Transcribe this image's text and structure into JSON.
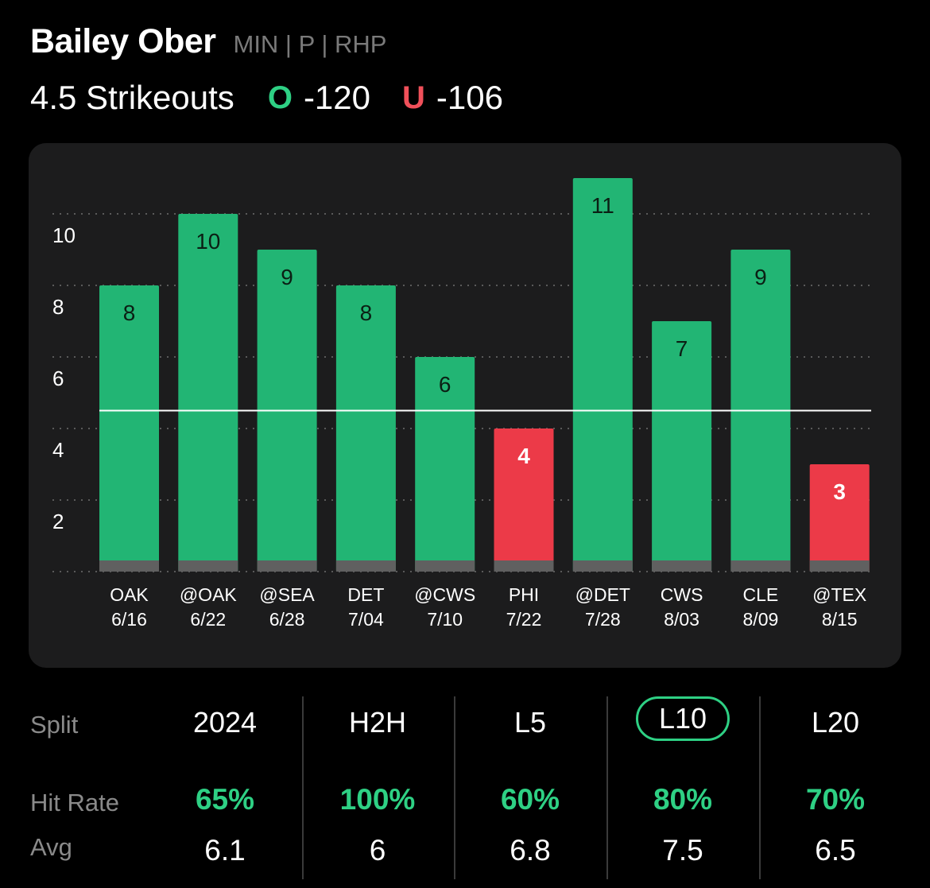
{
  "header": {
    "player_name": "Bailey Ober",
    "player_meta": "MIN | P | RHP",
    "prop_line": "4.5 Strikeouts",
    "over_letter": "O",
    "over_odds": "-120",
    "under_letter": "U",
    "under_odds": "-106"
  },
  "colors": {
    "over": "#2ed084",
    "under": "#f0505a",
    "bar_hit": "#22b574",
    "bar_miss": "#ec3a48",
    "bar_base": "#606060"
  },
  "chart_data": {
    "type": "bar",
    "line": 4.5,
    "ylim": [
      0,
      11.5
    ],
    "yticks": [
      2,
      4,
      6,
      8,
      10
    ],
    "grid": true,
    "categories": [
      {
        "opponent": "OAK",
        "date": "6/16"
      },
      {
        "opponent": "@OAK",
        "date": "6/22"
      },
      {
        "opponent": "@SEA",
        "date": "6/28"
      },
      {
        "opponent": "DET",
        "date": "7/04"
      },
      {
        "opponent": "@CWS",
        "date": "7/10"
      },
      {
        "opponent": "PHI",
        "date": "7/22"
      },
      {
        "opponent": "@DET",
        "date": "7/28"
      },
      {
        "opponent": "CWS",
        "date": "8/03"
      },
      {
        "opponent": "CLE",
        "date": "8/09"
      },
      {
        "opponent": "@TEX",
        "date": "8/15"
      }
    ],
    "values": [
      8,
      10,
      9,
      8,
      6,
      4,
      11,
      7,
      9,
      3
    ]
  },
  "splits": {
    "row_labels": {
      "split": "Split",
      "hit_rate": "Hit Rate",
      "avg": "Avg"
    },
    "selected": "L10",
    "columns": [
      {
        "name": "2024",
        "hit_rate": "65%",
        "avg": "6.1"
      },
      {
        "name": "H2H",
        "hit_rate": "100%",
        "avg": "6"
      },
      {
        "name": "L5",
        "hit_rate": "60%",
        "avg": "6.8"
      },
      {
        "name": "L10",
        "hit_rate": "80%",
        "avg": "7.5"
      },
      {
        "name": "L20",
        "hit_rate": "70%",
        "avg": "6.5"
      }
    ]
  }
}
